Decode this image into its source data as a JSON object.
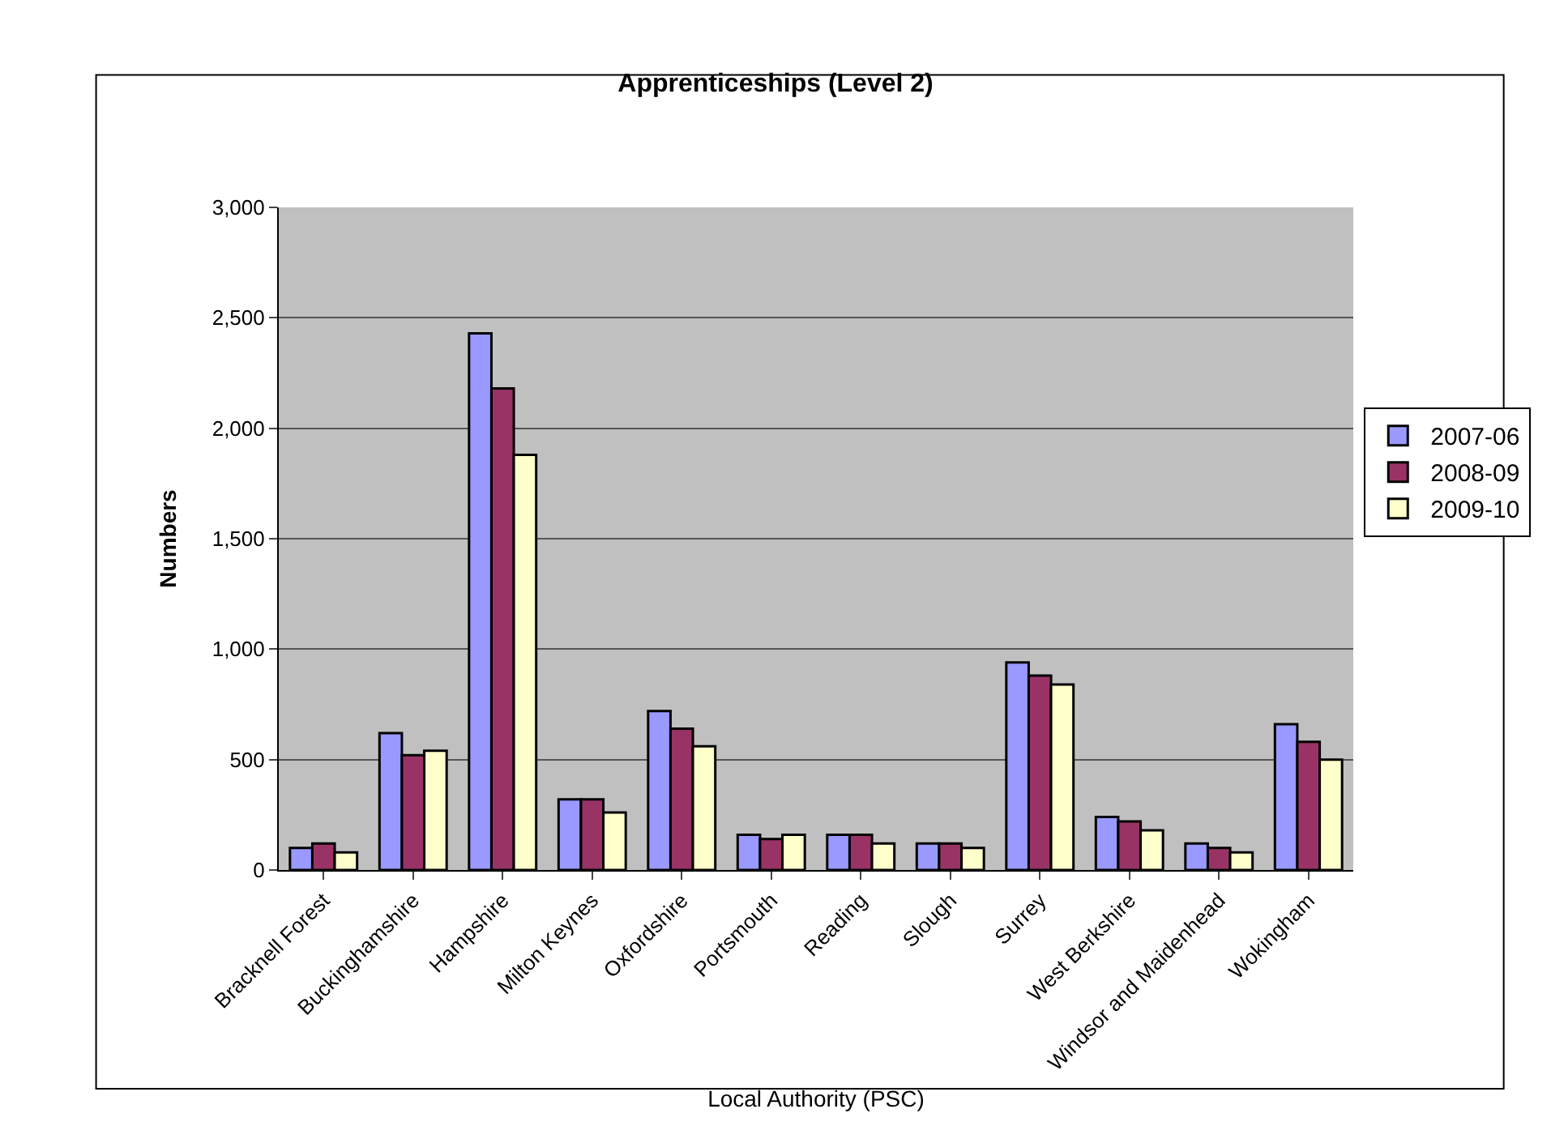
{
  "chart_data": {
    "type": "bar",
    "title": "Apprenticeships (Level 2)",
    "xlabel": "Local Authority (PSC)",
    "ylabel": "Numbers",
    "categories": [
      "Bracknell Forest",
      "Buckinghamshire",
      "Hampshire",
      "Milton Keynes",
      "Oxfordshire",
      "Portsmouth",
      "Reading",
      "Slough",
      "Surrey",
      "West Berkshire",
      "Windsor and Maidenhead",
      "Wokingham"
    ],
    "series": [
      {
        "name": "2007-06",
        "color": "#9999ff",
        "values": [
          100,
          620,
          2430,
          320,
          720,
          160,
          160,
          120,
          940,
          240,
          120,
          660
        ]
      },
      {
        "name": "2008-09",
        "color": "#993366",
        "values": [
          120,
          520,
          2180,
          320,
          640,
          140,
          160,
          120,
          880,
          220,
          100,
          580
        ]
      },
      {
        "name": "2009-10",
        "color": "#ffffcc",
        "values": [
          80,
          540,
          1880,
          260,
          560,
          160,
          120,
          100,
          840,
          180,
          80,
          500
        ]
      }
    ],
    "ylim": [
      0,
      3000
    ],
    "yticks": [
      {
        "value": 0,
        "label": "0"
      },
      {
        "value": 500,
        "label": "500"
      },
      {
        "value": 1000,
        "label": "1,000"
      },
      {
        "value": 1500,
        "label": "1,500"
      },
      {
        "value": 2000,
        "label": "2,000"
      },
      {
        "value": 2500,
        "label": "2,500"
      },
      {
        "value": 3000,
        "label": "3,000"
      }
    ],
    "grid": "y",
    "legend": "right"
  }
}
